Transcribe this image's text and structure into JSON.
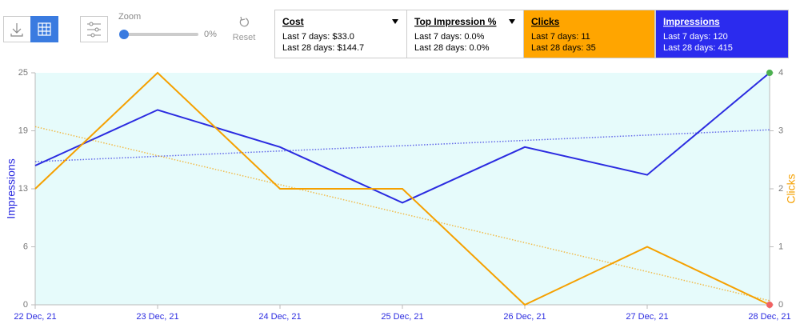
{
  "toolbar": {
    "zoom_label": "Zoom",
    "zoom_value": "0%",
    "reset_label": "Reset"
  },
  "cards": [
    {
      "title": "Cost",
      "lines": [
        "Last 7 days: $33.0",
        "Last 28 days: $144.7"
      ],
      "background": "#ffffff",
      "text_color": "#000000",
      "dropdown": true
    },
    {
      "title": "Top Impression %",
      "lines": [
        "Last 7 days: 0.0%",
        "Last 28 days: 0.0%"
      ],
      "background": "#ffffff",
      "text_color": "#000000",
      "dropdown": true
    },
    {
      "title": "Clicks",
      "lines": [
        "Last 7 days: 11",
        "Last 28 days: 35"
      ],
      "background": "#ffa500",
      "text_color": "#000000",
      "dropdown": false
    },
    {
      "title": "Impressions",
      "lines": [
        "Last 7 days: 120",
        "Last 28 days: 415"
      ],
      "background": "#2b2bee",
      "text_color": "#ffffff",
      "dropdown": false
    }
  ],
  "chart_data": {
    "type": "line",
    "categories": [
      "22 Dec, 21",
      "23 Dec, 21",
      "24 Dec, 21",
      "25 Dec, 21",
      "26 Dec, 21",
      "27 Dec, 21",
      "28 Dec, 21"
    ],
    "series": [
      {
        "color": "#2b2be0",
        "values": [
          15,
          21,
          17,
          11,
          17,
          14,
          25
        ],
        "end_marker_color": "#4cb050"
      },
      {
        "color": "#f5a000",
        "axis": "y2",
        "values": [
          2,
          4,
          2,
          2,
          0,
          1,
          0
        ],
        "end_marker_color": "#f06262"
      }
    ],
    "ylabel": "Impressions",
    "y2label": "Clicks",
    "ylim": [
      0,
      25
    ],
    "yticks": [
      0,
      {
        "value": 6.25,
        "label": "6"
      },
      {
        "value": 12.5,
        "label": "13"
      },
      {
        "value": 18.75,
        "label": "19"
      },
      25
    ],
    "y2lim": [
      0,
      4
    ],
    "y2ticks": [
      0,
      1,
      2,
      3,
      4
    ],
    "trendline": true,
    "plot_background": "#e6fbfb"
  }
}
